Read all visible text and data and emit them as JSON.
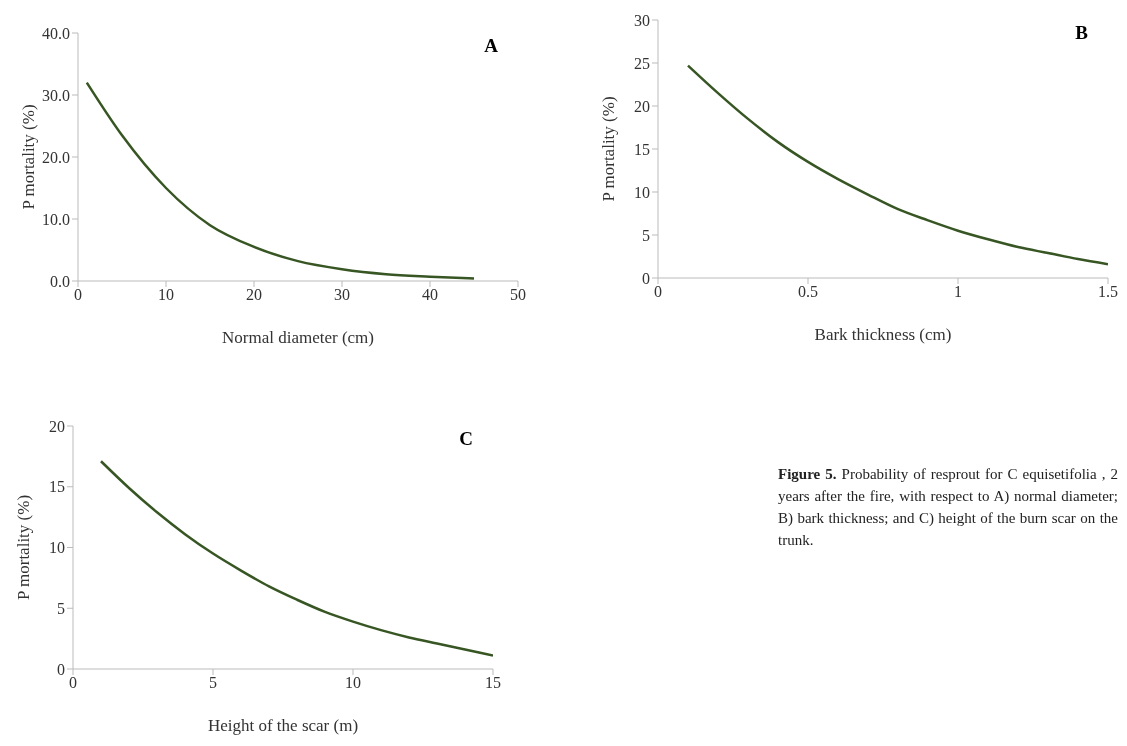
{
  "chart_data": [
    {
      "type": "line",
      "title": "A",
      "xlabel": "Normal diameter (cm)",
      "ylabel": "P mortality (%)",
      "x": [
        1,
        5,
        10,
        15,
        20,
        25,
        30,
        35,
        40,
        45
      ],
      "series": [
        {
          "color": "#375623",
          "values": [
            32,
            23.5,
            15,
            9,
            5.5,
            3.2,
            1.9,
            1.1,
            0.7,
            0.4
          ]
        }
      ],
      "xlim": [
        0,
        50
      ],
      "xticks": [
        0,
        10,
        20,
        30,
        40,
        50
      ],
      "ylim": [
        0,
        40
      ],
      "yticks": [
        {
          "value": 0,
          "label": "0.0"
        },
        {
          "value": 10,
          "label": "10.0"
        },
        {
          "value": 20,
          "label": "20.0"
        },
        {
          "value": 30,
          "label": "30.0"
        },
        {
          "value": 40,
          "label": "40.0"
        }
      ],
      "grid": false,
      "legend": false,
      "marker": "none",
      "line_style": "solid"
    },
    {
      "type": "line",
      "title": "B",
      "xlabel": "Bark thickness (cm)",
      "ylabel": "P mortality (%)",
      "x": [
        0.1,
        0.2,
        0.3,
        0.4,
        0.5,
        0.6,
        0.7,
        0.8,
        0.9,
        1.0,
        1.1,
        1.2,
        1.3,
        1.4,
        1.5
      ],
      "series": [
        {
          "color": "#375623",
          "values": [
            24.7,
            21.5,
            18.5,
            15.8,
            13.5,
            11.5,
            9.7,
            8,
            6.7,
            5.5,
            4.5,
            3.6,
            2.9,
            2.2,
            1.6
          ]
        }
      ],
      "xlim": [
        0,
        1.5
      ],
      "xticks": [
        0,
        0.5,
        1,
        1.5
      ],
      "ylim": [
        0,
        30
      ],
      "yticks": [
        0,
        5,
        10,
        15,
        20,
        25,
        30
      ],
      "grid": false,
      "legend": false,
      "marker": "none",
      "line_style": "solid"
    },
    {
      "type": "line",
      "title": "C",
      "xlabel": "Height of the scar (m)",
      "ylabel": "P mortality (%)",
      "x": [
        1,
        2,
        3,
        4,
        5,
        6,
        7,
        8,
        9,
        10,
        11,
        12,
        13,
        14,
        15
      ],
      "series": [
        {
          "color": "#375623",
          "values": [
            17.1,
            14.9,
            12.9,
            11.1,
            9.5,
            8.1,
            6.8,
            5.7,
            4.7,
            3.9,
            3.2,
            2.6,
            2.1,
            1.6,
            1.1
          ]
        }
      ],
      "xlim": [
        0,
        15
      ],
      "xticks": [
        0,
        5,
        10,
        15
      ],
      "ylim": [
        0,
        20
      ],
      "yticks": [
        0,
        5,
        10,
        15,
        20
      ],
      "grid": false,
      "legend": false,
      "marker": "none",
      "line_style": "solid"
    },
    {
      "type": "other",
      "title": "Figure 5.",
      "annotations": [
        "Probability of resprout for C equisetifolia , 2 years after the fire, with respect to A) normal diameter; B) bark thickness; and C) height of the burn scar on the trunk."
      ]
    }
  ]
}
